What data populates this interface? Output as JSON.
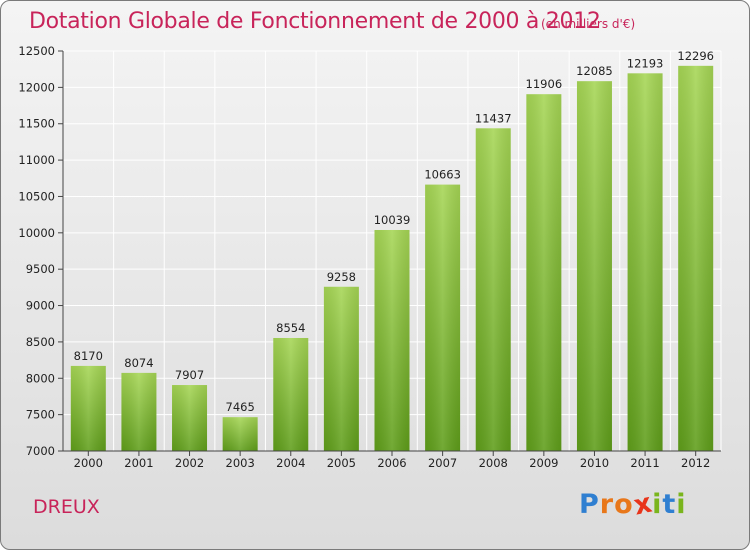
{
  "header": {
    "title": "Dotation Globale de Fonctionnement de 2000 à 2012",
    "subtitle": "(en milliers d'€)"
  },
  "footer": {
    "location": "DREUX",
    "logo_letters": [
      "P",
      "r",
      "o",
      "x",
      "i",
      "t",
      "i"
    ],
    "logo_colors": [
      "#2f7fd1",
      "#e8771a",
      "#e8771a",
      "#e8341a",
      "#7ab51d",
      "#2f7fd1",
      "#7ab51d"
    ]
  },
  "colors": {
    "bar_light": "#a6d655",
    "bar_dark": "#5f9e1a",
    "grid": "#ffffff",
    "axis": "#444444",
    "accent": "#c8245a"
  },
  "chart_data": {
    "type": "bar",
    "categories": [
      "2000",
      "2001",
      "2002",
      "2003",
      "2004",
      "2005",
      "2006",
      "2007",
      "2008",
      "2009",
      "2010",
      "2011",
      "2012"
    ],
    "values": [
      8170,
      8074,
      7907,
      7465,
      8554,
      9258,
      10039,
      10663,
      11437,
      11906,
      12085,
      12193,
      12296
    ],
    "title": "Dotation Globale de Fonctionnement de 2000 à 2012",
    "subtitle": "(en milliers d'€)",
    "ylim": [
      7000,
      12500
    ],
    "yticks": [
      7000,
      7500,
      8000,
      8500,
      9000,
      9500,
      10000,
      10500,
      11000,
      11500,
      12000,
      12500
    ],
    "grid": true,
    "data_labels": true
  }
}
